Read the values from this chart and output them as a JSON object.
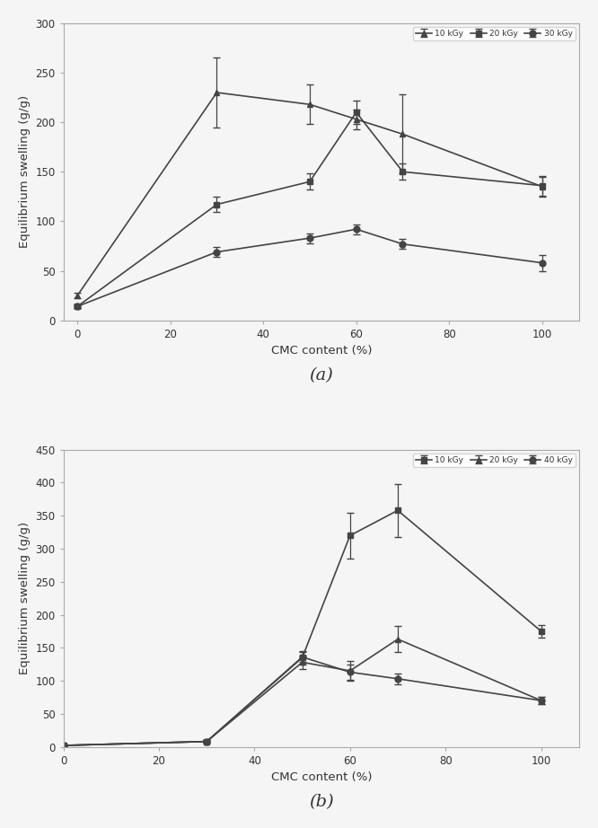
{
  "chart_a": {
    "x": [
      0,
      30,
      50,
      60,
      70,
      100
    ],
    "series": [
      {
        "label": "10 kGy",
        "y": [
          25,
          230,
          218,
          203,
          188,
          135
        ],
        "yerr": [
          3,
          35,
          20,
          10,
          40,
          10
        ],
        "marker": "^",
        "color": "#444444"
      },
      {
        "label": "20 kGy",
        "y": [
          14,
          117,
          140,
          210,
          150,
          136
        ],
        "yerr": [
          2,
          8,
          8,
          12,
          8,
          10
        ],
        "marker": "s",
        "color": "#444444"
      },
      {
        "label": "30 kGy",
        "y": [
          14,
          69,
          83,
          92,
          77,
          58
        ],
        "yerr": [
          2,
          5,
          5,
          5,
          5,
          8
        ],
        "marker": "o",
        "color": "#444444"
      }
    ],
    "ylabel": "Equilibrium swelling (g/g)",
    "xlabel": "CMC content (%)",
    "ylim": [
      0,
      300
    ],
    "yticks": [
      0,
      50,
      100,
      150,
      200,
      250,
      300
    ],
    "xticks": [
      0,
      20,
      40,
      60,
      80,
      100
    ],
    "xlim": [
      -3,
      108
    ],
    "legend_loc": "upper right",
    "sublabel": "(a)"
  },
  "chart_b": {
    "x": [
      0,
      30,
      50,
      60,
      70,
      100
    ],
    "series": [
      {
        "label": "10 kGy",
        "y": [
          2,
          8,
          135,
          320,
          358,
          175
        ],
        "yerr": [
          1,
          2,
          10,
          35,
          40,
          10
        ],
        "marker": "s",
        "color": "#444444"
      },
      {
        "label": "20 kGy",
        "y": [
          2,
          8,
          128,
          115,
          163,
          70
        ],
        "yerr": [
          1,
          2,
          10,
          15,
          20,
          5
        ],
        "marker": "^",
        "color": "#444444"
      },
      {
        "label": "40 kGy",
        "y": [
          2,
          8,
          136,
          113,
          103,
          70
        ],
        "yerr": [
          1,
          2,
          8,
          12,
          8,
          5
        ],
        "marker": "o",
        "color": "#444444"
      }
    ],
    "ylabel": "Equilibrium swelling (g/g)",
    "xlabel": "CMC content (%)",
    "ylim": [
      0,
      450
    ],
    "yticks": [
      0,
      50,
      100,
      150,
      200,
      250,
      300,
      350,
      400,
      450
    ],
    "xticks": [
      0,
      20,
      40,
      60,
      80,
      100
    ],
    "xlim": [
      25,
      108
    ],
    "legend_loc": "upper right",
    "sublabel": "(b)"
  },
  "background_color": "#f5f5f5",
  "markersize": 5,
  "linewidth": 1.2,
  "capsize": 3,
  "elinewidth": 0.9,
  "legend_fontsize": 6.5,
  "axis_fontsize": 9.5,
  "tick_fontsize": 8.5,
  "sublabel_fontsize": 14
}
